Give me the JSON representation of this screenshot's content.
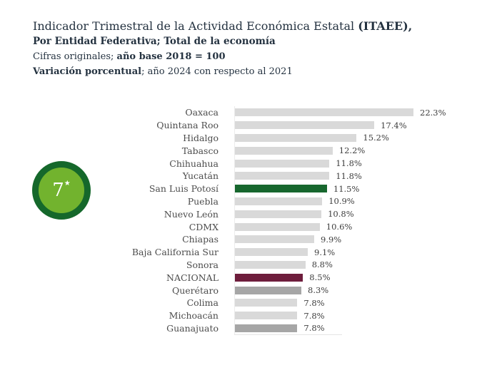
{
  "header": {
    "title_regular": "Indicador Trimestral de la Actividad Económica Estatal ",
    "title_bold": "(ITAEE),",
    "subtitle_bold": "Por Entidad Federativa; Total de la economía",
    "line3_regular": "Cifras originales; ",
    "line3_bold": "año base 2018 = 100",
    "line4_bold": "Variación porcentual",
    "line4_regular": "; año 2024 con respecto al 2021"
  },
  "badge": {
    "rank": "7",
    "star": "★",
    "ring_color": "#15682b",
    "fill_color": "#72b32e"
  },
  "chart_data": {
    "type": "bar",
    "orientation": "horizontal",
    "title": "Indicador Trimestral de la Actividad Económica Estatal (ITAEE), Por Entidad Federativa; Total de la economía",
    "xlabel": "",
    "ylabel": "",
    "xlim": [
      0,
      22.3
    ],
    "grid": false,
    "legend": "none",
    "categories": [
      "Oaxaca",
      "Quintana Roo",
      "Hidalgo",
      "Tabasco",
      "Chihuahua",
      "Yucatán",
      "San Luis Potosí",
      "Puebla",
      "Nuevo León",
      "CDMX",
      "Chiapas",
      "Baja California Sur",
      "Sonora",
      "NACIONAL",
      "Querétaro",
      "Colima",
      "Michoacán",
      "Guanajuato"
    ],
    "values": [
      22.3,
      17.4,
      15.2,
      12.2,
      11.8,
      11.8,
      11.5,
      10.9,
      10.8,
      10.6,
      9.9,
      9.1,
      8.8,
      8.5,
      8.3,
      7.8,
      7.8,
      7.8
    ],
    "bars": [
      {
        "label": "Oaxaca",
        "value": 22.3,
        "display": "22.3%",
        "color": "default"
      },
      {
        "label": "Quintana Roo",
        "value": 17.4,
        "display": "17.4%",
        "color": "default"
      },
      {
        "label": "Hidalgo",
        "value": 15.2,
        "display": "15.2%",
        "color": "default"
      },
      {
        "label": "Tabasco",
        "value": 12.2,
        "display": "12.2%",
        "color": "default"
      },
      {
        "label": "Chihuahua",
        "value": 11.8,
        "display": "11.8%",
        "color": "default"
      },
      {
        "label": "Yucatán",
        "value": 11.8,
        "display": "11.8%",
        "color": "default"
      },
      {
        "label": "San Luis Potosí",
        "value": 11.5,
        "display": "11.5%",
        "color": "green"
      },
      {
        "label": "Puebla",
        "value": 10.9,
        "display": "10.9%",
        "color": "default"
      },
      {
        "label": "Nuevo León",
        "value": 10.8,
        "display": "10.8%",
        "color": "default"
      },
      {
        "label": "CDMX",
        "value": 10.6,
        "display": "10.6%",
        "color": "default"
      },
      {
        "label": "Chiapas",
        "value": 9.9,
        "display": "9.9%",
        "color": "default"
      },
      {
        "label": "Baja California Sur",
        "value": 9.1,
        "display": "9.1%",
        "color": "default"
      },
      {
        "label": "Sonora",
        "value": 8.8,
        "display": "8.8%",
        "color": "default"
      },
      {
        "label": "NACIONAL",
        "value": 8.5,
        "display": "8.5%",
        "color": "maroon"
      },
      {
        "label": "Querétaro",
        "value": 8.3,
        "display": "8.3%",
        "color": "dark"
      },
      {
        "label": "Colima",
        "value": 7.8,
        "display": "7.8%",
        "color": "default"
      },
      {
        "label": "Michoacán",
        "value": 7.8,
        "display": "7.8%",
        "color": "default"
      },
      {
        "label": "Guanajuato",
        "value": 7.8,
        "display": "7.8%",
        "color": "dark"
      }
    ],
    "color_map": {
      "default": "#d9d9d9",
      "dark": "#a6a6a6",
      "green": "#17672e",
      "maroon": "#6e1d3c"
    }
  }
}
